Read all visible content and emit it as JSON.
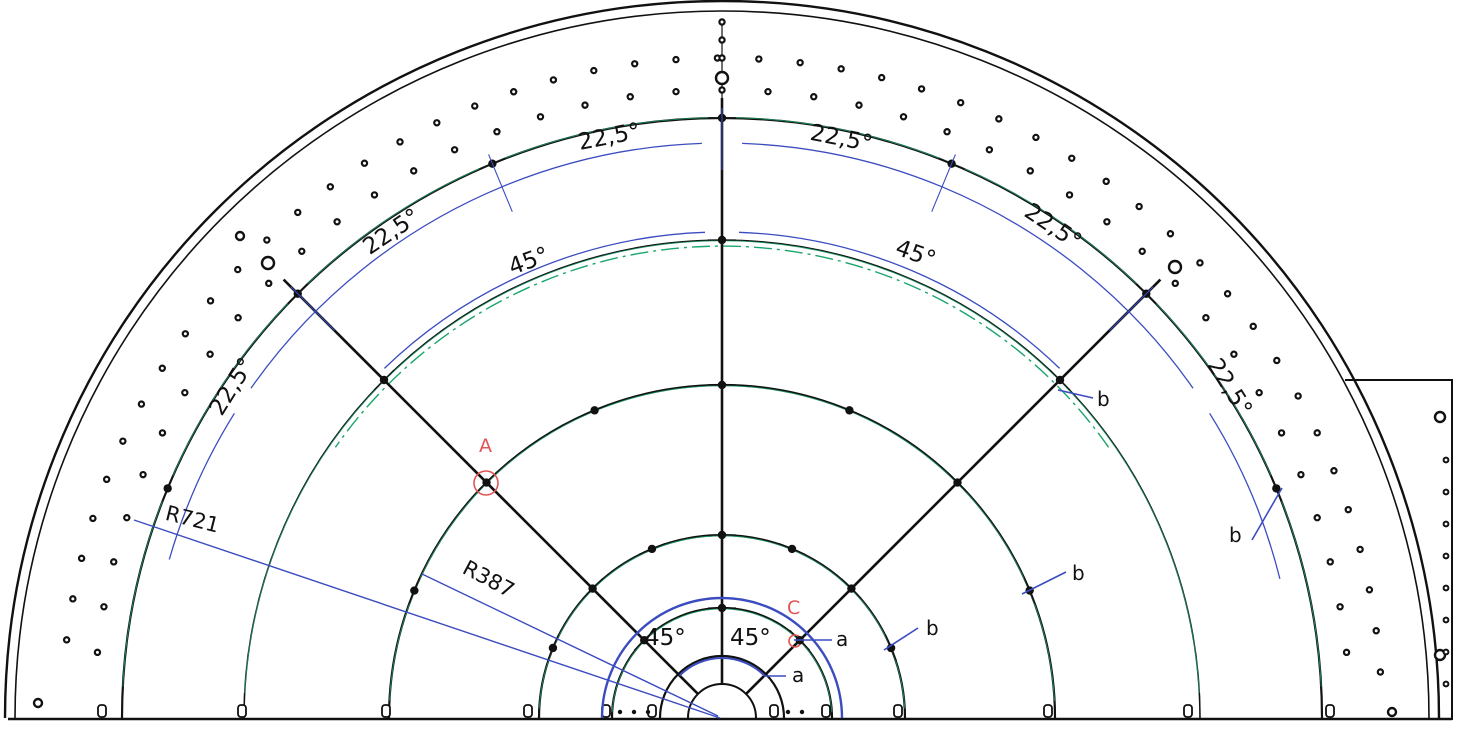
{
  "colors": {
    "structure": "#111111",
    "dimension": "#3b4cc0",
    "centerline": "#1aa66b",
    "detail_marker": "#e25555",
    "background": "#ffffff"
  },
  "angle_labels": {
    "top_left": "22,5°",
    "top_right": "22,5°",
    "upper_left": "22,5°",
    "upper_right": "22,5°",
    "lower_left": "22,5°",
    "lower_right": "22,5°",
    "inner_left": "45°",
    "inner_right": "45°",
    "hub_left": "45°",
    "hub_right": "45°"
  },
  "radius_labels": {
    "outer": "R721",
    "inner": "R387"
  },
  "detail_labels": {
    "a_marker": "A",
    "c_marker": "C"
  },
  "callouts": {
    "b_right_inner": "b",
    "b_right_outer": "b",
    "b_right_middle": "b",
    "b_center_right": "b",
    "a_upper": "a",
    "a_lower": "a"
  }
}
